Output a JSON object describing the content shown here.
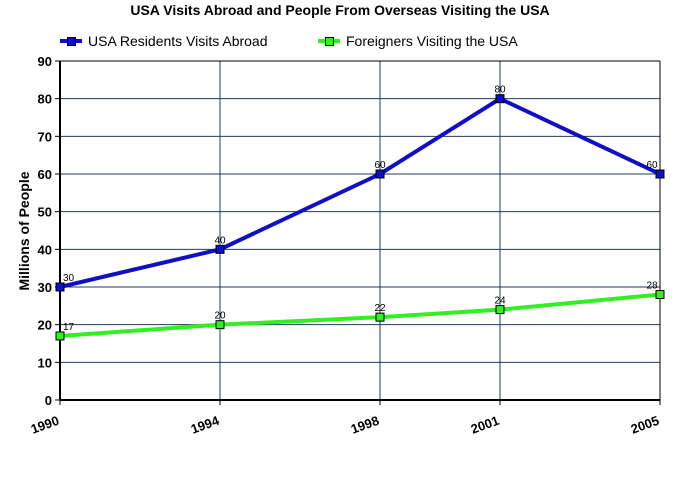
{
  "chart_data": {
    "type": "line",
    "title": "USA Visits Abroad and People From Overseas Visiting the USA",
    "xlabel": "",
    "ylabel": "Millions of People",
    "x": [
      "1990",
      "1994",
      "1998",
      "2001",
      "2005"
    ],
    "ylim": [
      0,
      90
    ],
    "yticks": [
      0,
      10,
      20,
      30,
      40,
      50,
      60,
      70,
      80,
      90
    ],
    "grid": true,
    "legend_position": "top",
    "series": [
      {
        "name": "USA Residents Visits Abroad",
        "values": [
          30,
          40,
          60,
          80,
          60
        ],
        "color": "#1010c0"
      },
      {
        "name": "Foreigners Visiting the USA",
        "values": [
          17,
          20,
          22,
          24,
          28
        ],
        "color": "#33ee22"
      }
    ],
    "data_labels": true
  },
  "colors": {
    "grid": "#1f3b5b",
    "axis": "#000000",
    "marker_border": "#000000"
  }
}
